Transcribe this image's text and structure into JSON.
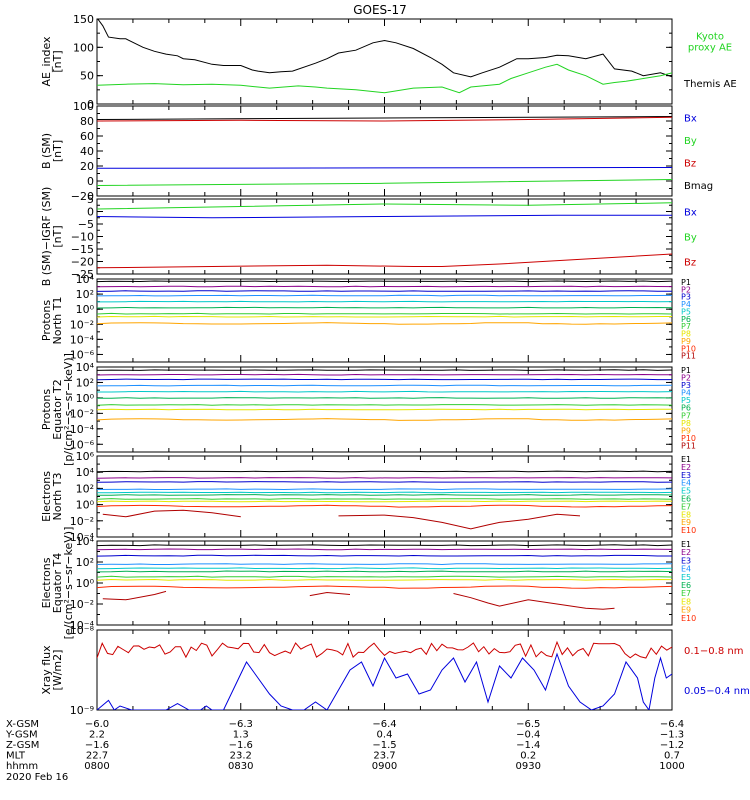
{
  "title": "GOES-17",
  "colors": {
    "black": "#000000",
    "green": "#22d422",
    "blue": "#0000dd",
    "red": "#cc0000",
    "ch": [
      "#000000",
      "#8b008b",
      "#0000cd",
      "#1e90ff",
      "#00c8c8",
      "#00b050",
      "#32cd32",
      "#e6e600",
      "#ffa500",
      "#ff2a00",
      "#b00000"
    ]
  },
  "chart_data": [
    {
      "type": "line",
      "ylabel": "AE_index\n[nT]",
      "ylim": [
        0,
        150
      ],
      "yticks": [
        {
          "v": 0,
          "t": "0"
        },
        {
          "v": 50,
          "t": "50"
        },
        {
          "v": 100,
          "t": "100"
        },
        {
          "v": 150,
          "t": "150"
        }
      ],
      "legend": [
        {
          "text": "Kyoto\nproxy AE",
          "color": "green"
        },
        {
          "text": "Themis AE",
          "color": "black"
        }
      ],
      "series": [
        {
          "color": "black",
          "x": [
            0,
            1,
            2,
            4,
            5,
            8,
            10,
            12,
            14,
            15,
            17,
            20,
            22,
            25,
            27,
            28,
            30,
            32,
            34,
            38,
            40,
            42,
            45,
            48,
            50,
            52,
            55,
            58,
            60,
            62,
            65,
            67,
            70,
            73,
            75,
            78,
            80,
            82,
            85,
            88,
            90,
            93,
            95,
            98,
            100
          ],
          "y": [
            152,
            138,
            118,
            115,
            115,
            100,
            93,
            88,
            85,
            80,
            78,
            70,
            68,
            68,
            60,
            58,
            55,
            57,
            58,
            72,
            80,
            90,
            95,
            108,
            112,
            108,
            98,
            82,
            70,
            55,
            48,
            55,
            65,
            80,
            80,
            82,
            86,
            85,
            80,
            88,
            62,
            58,
            50,
            55,
            48
          ]
        },
        {
          "color": "green",
          "x": [
            0,
            5,
            10,
            15,
            20,
            25,
            28,
            30,
            35,
            38,
            40,
            45,
            50,
            55,
            60,
            63,
            65,
            70,
            72,
            75,
            78,
            80,
            82,
            85,
            88,
            90,
            92,
            95,
            98,
            100
          ],
          "y": [
            33,
            35,
            36,
            34,
            35,
            33,
            30,
            28,
            32,
            30,
            28,
            25,
            20,
            28,
            30,
            20,
            30,
            35,
            45,
            55,
            65,
            70,
            60,
            50,
            35,
            38,
            40,
            45,
            50,
            55
          ]
        }
      ]
    },
    {
      "type": "line",
      "ylabel": "B (SM)\n[nT]",
      "ylim": [
        -20,
        100
      ],
      "yticks": [
        {
          "v": -20,
          "t": "−20"
        },
        {
          "v": 0,
          "t": "0"
        },
        {
          "v": 20,
          "t": "20"
        },
        {
          "v": 40,
          "t": "40"
        },
        {
          "v": 60,
          "t": "60"
        },
        {
          "v": 80,
          "t": "80"
        },
        {
          "v": 100,
          "t": "100"
        }
      ],
      "legend": [
        {
          "text": "Bx",
          "color": "blue"
        },
        {
          "text": "By",
          "color": "green"
        },
        {
          "text": "Bz",
          "color": "red"
        },
        {
          "text": "Bmag",
          "color": "black"
        }
      ],
      "series": [
        {
          "color": "black",
          "x": [
            0,
            100
          ],
          "y": [
            82,
            86
          ]
        },
        {
          "color": "red",
          "x": [
            0,
            25,
            50,
            75,
            100
          ],
          "y": [
            80,
            81,
            80,
            82,
            85
          ]
        },
        {
          "color": "blue",
          "x": [
            0,
            100
          ],
          "y": [
            17,
            18
          ]
        },
        {
          "color": "green",
          "x": [
            0,
            50,
            100
          ],
          "y": [
            -6,
            -3,
            2
          ]
        }
      ]
    },
    {
      "type": "line",
      "ylabel": "B (SM)−IGRF (SM)\n[nT]",
      "ylim": [
        -25,
        5
      ],
      "yticks": [
        {
          "v": -25,
          "t": "−25"
        },
        {
          "v": -20,
          "t": "−20"
        },
        {
          "v": -15,
          "t": "−15"
        },
        {
          "v": -10,
          "t": "−10"
        },
        {
          "v": -5,
          "t": "−5"
        },
        {
          "v": 0,
          "t": "0"
        },
        {
          "v": 5,
          "t": "5"
        }
      ],
      "legend": [
        {
          "text": "Bx",
          "color": "blue"
        },
        {
          "text": "By",
          "color": "green"
        },
        {
          "text": "Bz",
          "color": "red"
        }
      ],
      "series": [
        {
          "color": "green",
          "x": [
            0,
            25,
            50,
            75,
            100
          ],
          "y": [
            1,
            2,
            3,
            2.5,
            3.5
          ]
        },
        {
          "color": "blue",
          "x": [
            0,
            20,
            50,
            80,
            100
          ],
          "y": [
            -2,
            -2.5,
            -2,
            -1.5,
            -1.5
          ]
        },
        {
          "color": "red",
          "x": [
            0,
            20,
            40,
            55,
            60,
            70,
            85,
            100
          ],
          "y": [
            -22.5,
            -22,
            -21.5,
            -22,
            -22,
            -21,
            -19,
            -17
          ]
        }
      ]
    },
    {
      "type": "line",
      "log": true,
      "ylabel": "Protons\nNorth T1",
      "ylim": [
        -7,
        4
      ],
      "yticks": [
        {
          "v": 4,
          "t": "10⁴"
        },
        {
          "v": 2,
          "t": "10²"
        },
        {
          "v": 0,
          "t": "10⁰"
        },
        {
          "v": -2,
          "t": "10⁻²"
        },
        {
          "v": -4,
          "t": "10⁻⁴"
        },
        {
          "v": -6,
          "t": "10⁻⁶"
        }
      ],
      "legend": [
        "P1",
        "P2",
        "P3",
        "P4",
        "P5",
        "P6",
        "P7",
        "P8",
        "P9",
        "P10",
        "P11"
      ],
      "series": [
        {
          "ch": 0,
          "y": 3.7
        },
        {
          "ch": 1,
          "y": 3.0
        },
        {
          "ch": 2,
          "y": 2.4
        },
        {
          "ch": 3,
          "y": 1.8
        },
        {
          "ch": 4,
          "y": 1.0
        },
        {
          "ch": 5,
          "y": 0.2
        },
        {
          "ch": 6,
          "y": -0.6
        },
        {
          "ch": 7,
          "y": -1.0
        },
        {
          "ch": 8,
          "y": -1.9
        }
      ]
    },
    {
      "type": "line",
      "log": true,
      "ylabel": "Protons\nEquator T2\n[p/(cm²−s−sr−keV)]",
      "ylim": [
        -7,
        4
      ],
      "yticks": [
        {
          "v": 4,
          "t": "10⁴"
        },
        {
          "v": 2,
          "t": "10²"
        },
        {
          "v": 0,
          "t": "10⁰"
        },
        {
          "v": -2,
          "t": "10⁻²"
        },
        {
          "v": -4,
          "t": "10⁻⁴"
        },
        {
          "v": -6,
          "t": "10⁻⁶"
        }
      ],
      "legend": [
        "P1",
        "P2",
        "P3",
        "P4",
        "P5",
        "P6",
        "P7",
        "P8",
        "P9",
        "P10",
        "P11"
      ],
      "series": [
        {
          "ch": 0,
          "y": 3.6
        },
        {
          "ch": 1,
          "y": 3.0
        },
        {
          "ch": 2,
          "y": 2.4
        },
        {
          "ch": 3,
          "y": 1.6
        },
        {
          "ch": 4,
          "y": 0.8
        },
        {
          "ch": 5,
          "y": 0.0
        },
        {
          "ch": 6,
          "y": -0.9
        },
        {
          "ch": 7,
          "y": -1.5
        },
        {
          "ch": 8,
          "y": -2.8
        }
      ]
    },
    {
      "type": "line",
      "log": true,
      "ylabel": "Electrons\nNorth T3",
      "ylim": [
        -4,
        6
      ],
      "yticks": [
        {
          "v": 6,
          "t": "10⁶"
        },
        {
          "v": 4,
          "t": "10⁴"
        },
        {
          "v": 2,
          "t": "10²"
        },
        {
          "v": 0,
          "t": "10⁰"
        },
        {
          "v": -2,
          "t": "10⁻²"
        },
        {
          "v": -4,
          "t": "10⁻⁴"
        }
      ],
      "legend": [
        "E1",
        "E2",
        "E3",
        "E4",
        "E5",
        "E6",
        "E7",
        "E8",
        "E9",
        "E10"
      ],
      "series": [
        {
          "ch": 0,
          "y": 4.1
        },
        {
          "ch": 1,
          "y": 3.3
        },
        {
          "ch": 2,
          "y": 2.8
        },
        {
          "ch": 3,
          "y": 1.9
        },
        {
          "ch": 4,
          "y": 1.5
        },
        {
          "ch": 5,
          "y": 1.2
        },
        {
          "ch": 6,
          "y": 0.7
        },
        {
          "ch": 7,
          "y": 0.4
        },
        {
          "ch": 9,
          "y": -0.2
        },
        {
          "ch": 10,
          "segments": [
            {
              "x": [
                1,
                5,
                10,
                15,
                20,
                25
              ],
              "y": [
                -1.2,
                -1.5,
                -0.8,
                -0.7,
                -1.0,
                -1.5
              ]
            },
            {
              "x": [
                42,
                50,
                55,
                60,
                65,
                68,
                70,
                75,
                80,
                84
              ],
              "y": [
                -1.4,
                -1.3,
                -1.6,
                -2.2,
                -3.0,
                -2.5,
                -2.2,
                -1.8,
                -1.2,
                -1.4
              ]
            }
          ]
        }
      ]
    },
    {
      "type": "line",
      "log": true,
      "ylabel": "Electrons\nEquator T4\n[e/(cm²−s−sr−keV)]",
      "ylim": [
        -4,
        4
      ],
      "yticks": [
        {
          "v": 4,
          "t": "10⁴"
        },
        {
          "v": 2,
          "t": "10²"
        },
        {
          "v": 0,
          "t": "10⁰"
        },
        {
          "v": -2,
          "t": "10⁻²"
        },
        {
          "v": -4,
          "t": "10⁻⁴"
        }
      ],
      "legend": [
        "E1",
        "E2",
        "E3",
        "E4",
        "E5",
        "E6",
        "E7",
        "E8",
        "E9",
        "E10"
      ],
      "series": [
        {
          "ch": 0,
          "y": 3.6
        },
        {
          "ch": 1,
          "y": 3.2
        },
        {
          "ch": 2,
          "y": 2.6
        },
        {
          "ch": 3,
          "y": 1.8
        },
        {
          "ch": 4,
          "y": 1.4
        },
        {
          "ch": 5,
          "y": 1.1
        },
        {
          "ch": 6,
          "y": 0.6
        },
        {
          "ch": 7,
          "y": 0.3
        },
        {
          "ch": 9,
          "y": -0.4
        },
        {
          "ch": 10,
          "segments": [
            {
              "x": [
                1,
                5,
                10,
                12
              ],
              "y": [
                -1.5,
                -1.6,
                -1.1,
                -0.8
              ]
            },
            {
              "x": [
                37,
                40,
                44
              ],
              "y": [
                -1.2,
                -0.9,
                -1.1
              ]
            },
            {
              "x": [
                62,
                65,
                68,
                70,
                75,
                80,
                85,
                88,
                90
              ],
              "y": [
                -1.0,
                -1.4,
                -1.9,
                -2.2,
                -1.6,
                -2.0,
                -2.4,
                -2.5,
                -2.4
              ]
            }
          ]
        }
      ]
    },
    {
      "type": "line",
      "log": true,
      "ylabel": "Xray flux\n[W/m2]",
      "ylim": [
        -9,
        -8
      ],
      "yticks": [
        {
          "v": -8,
          "t": "10⁻⁸"
        },
        {
          "v": -9,
          "t": "10⁻⁹"
        }
      ],
      "legend": [
        {
          "text": "0.1−0.8 nm",
          "color": "red"
        },
        {
          "text": "0.05−0.4 nm",
          "color": "blue"
        }
      ],
      "series": [
        {
          "color": "red",
          "noise": {
            "base": -8.25,
            "amp": 0.1,
            "seed": 7,
            "n": 110
          }
        },
        {
          "color": "blue",
          "bursts": [
            {
              "x": [
                0,
                2,
                3,
                4,
                6,
                8,
                10,
                12,
                14,
                16,
                18,
                19,
                20,
                22,
                24,
                26,
                28,
                30,
                32,
                34,
                36,
                38,
                40,
                42,
                44,
                46,
                48,
                50,
                52,
                54,
                56,
                58,
                60,
                62,
                64,
                66,
                68,
                70,
                72,
                74,
                76,
                78,
                80,
                82,
                84,
                86,
                88,
                90,
                92,
                94,
                95,
                96,
                97,
                98,
                99,
                100
              ],
              "y": [
                -9,
                -8.88,
                -9,
                -8.95,
                -9,
                -9,
                -9,
                -9,
                -8.92,
                -9,
                -9,
                -8.95,
                -9,
                -9,
                -8.7,
                -8.4,
                -8.6,
                -8.8,
                -8.95,
                -9,
                -9,
                -8.9,
                -9,
                -8.75,
                -8.5,
                -8.4,
                -8.7,
                -8.35,
                -8.6,
                -8.55,
                -8.8,
                -8.75,
                -8.5,
                -8.35,
                -8.65,
                -8.4,
                -8.9,
                -8.45,
                -8.6,
                -8.35,
                -8.5,
                -8.75,
                -8.3,
                -8.7,
                -8.9,
                -9,
                -8.95,
                -8.8,
                -8.4,
                -8.6,
                -8.9,
                -9,
                -8.6,
                -8.35,
                -8.6,
                -8.55
              ]
            }
          ]
        }
      ]
    }
  ],
  "xaxis": {
    "ticks": [
      0,
      25,
      50,
      75,
      100
    ],
    "rows": [
      {
        "label": "X-GSM",
        "values": [
          "−6.0",
          "−6.3",
          "−6.4",
          "−6.5",
          "−6.4"
        ]
      },
      {
        "label": "Y-GSM",
        "values": [
          "2.2",
          "1.3",
          "0.4",
          "−0.4",
          "−1.3"
        ]
      },
      {
        "label": "Z-GSM",
        "values": [
          "−1.6",
          "−1.6",
          "−1.5",
          "−1.4",
          "−1.2"
        ]
      },
      {
        "label": "MLT",
        "values": [
          "22.7",
          "23.2",
          "23.7",
          "0.2",
          "0.7"
        ]
      },
      {
        "label": "hhmm",
        "values": [
          "0800",
          "0830",
          "0900",
          "0930",
          "1000"
        ]
      }
    ],
    "date": "2020 Feb 16"
  }
}
